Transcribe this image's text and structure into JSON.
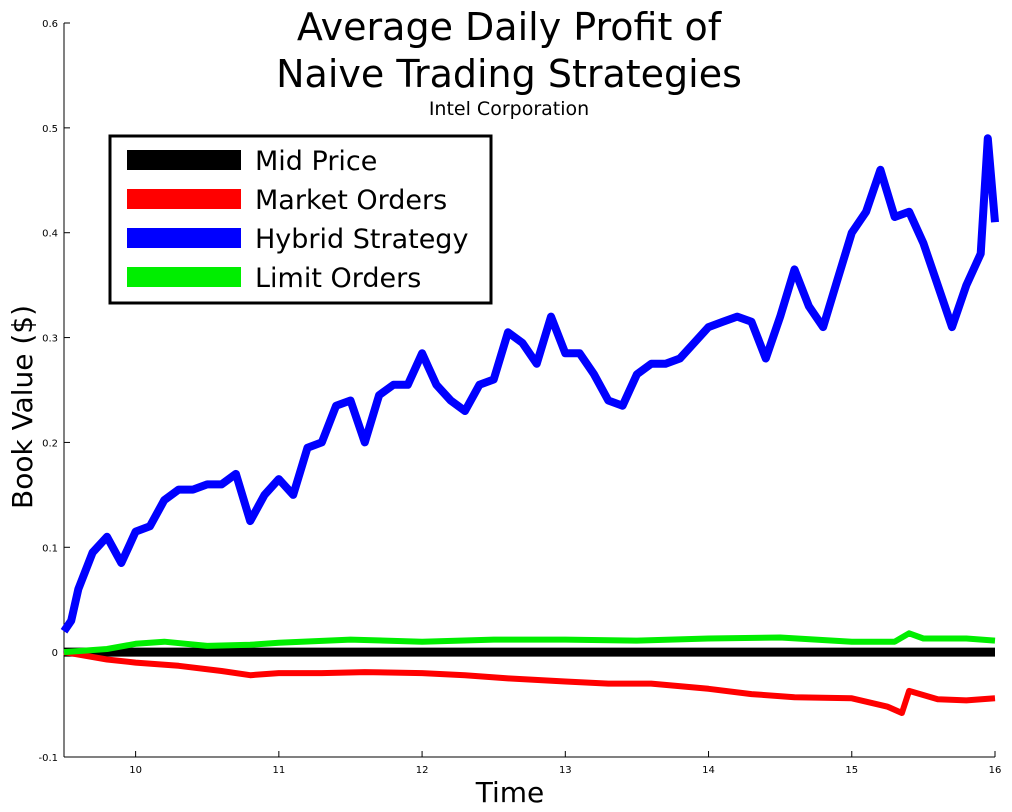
{
  "chart_data": {
    "type": "line",
    "title_line1": "Average Daily Profit of",
    "title_line2": "Naive Trading Strategies",
    "subtitle": "Intel Corporation",
    "xlabel": "Time",
    "ylabel": "Book Value ($)",
    "xlim": [
      9.5,
      16
    ],
    "ylim": [
      -0.1,
      0.6
    ],
    "x_ticks": [
      "10",
      "11",
      "12",
      "13",
      "14",
      "15",
      "16"
    ],
    "y_ticks": [
      "-0.1",
      "0",
      "0.1",
      "0.2",
      "0.3",
      "0.4",
      "0.5",
      "0.6"
    ],
    "legend_position": "top-left",
    "grid": false,
    "series": [
      {
        "name": "Mid Price",
        "color": "#000000",
        "x": [
          9.5,
          16.0
        ],
        "y": [
          0.0,
          0.0
        ]
      },
      {
        "name": "Market Orders",
        "color": "#ff0000",
        "x": [
          9.5,
          9.8,
          10.0,
          10.3,
          10.6,
          10.8,
          11.0,
          11.3,
          11.6,
          12.0,
          12.3,
          12.6,
          13.0,
          13.3,
          13.6,
          14.0,
          14.3,
          14.6,
          15.0,
          15.25,
          15.35,
          15.4,
          15.6,
          15.8,
          16.0
        ],
        "y": [
          0.0,
          -0.007,
          -0.01,
          -0.013,
          -0.018,
          -0.022,
          -0.02,
          -0.02,
          -0.019,
          -0.02,
          -0.022,
          -0.025,
          -0.028,
          -0.03,
          -0.03,
          -0.035,
          -0.04,
          -0.043,
          -0.044,
          -0.052,
          -0.058,
          -0.037,
          -0.045,
          -0.046,
          -0.044
        ]
      },
      {
        "name": "Hybrid Strategy",
        "color": "#0000ff",
        "x": [
          9.5,
          9.55,
          9.6,
          9.7,
          9.8,
          9.9,
          9.95,
          10.0,
          10.1,
          10.2,
          10.3,
          10.4,
          10.5,
          10.6,
          10.7,
          10.8,
          10.9,
          11.0,
          11.1,
          11.2,
          11.3,
          11.4,
          11.5,
          11.6,
          11.7,
          11.8,
          11.9,
          12.0,
          12.05,
          12.1,
          12.2,
          12.3,
          12.4,
          12.5,
          12.6,
          12.7,
          12.8,
          12.9,
          13.0,
          13.1,
          13.2,
          13.3,
          13.4,
          13.5,
          13.6,
          13.7,
          13.8,
          13.9,
          14.0,
          14.1,
          14.2,
          14.3,
          14.4,
          14.5,
          14.6,
          14.7,
          14.8,
          14.9,
          15.0,
          15.1,
          15.2,
          15.3,
          15.4,
          15.5,
          15.6,
          15.7,
          15.8,
          15.9,
          15.95,
          16.0
        ],
        "y": [
          0.02,
          0.03,
          0.06,
          0.095,
          0.11,
          0.085,
          0.1,
          0.115,
          0.12,
          0.145,
          0.155,
          0.155,
          0.16,
          0.16,
          0.17,
          0.125,
          0.15,
          0.165,
          0.15,
          0.195,
          0.2,
          0.235,
          0.24,
          0.2,
          0.245,
          0.255,
          0.255,
          0.285,
          0.27,
          0.255,
          0.24,
          0.23,
          0.255,
          0.26,
          0.305,
          0.295,
          0.275,
          0.32,
          0.285,
          0.285,
          0.265,
          0.24,
          0.235,
          0.265,
          0.275,
          0.275,
          0.28,
          0.295,
          0.31,
          0.315,
          0.32,
          0.315,
          0.28,
          0.32,
          0.365,
          0.33,
          0.31,
          0.355,
          0.4,
          0.42,
          0.46,
          0.415,
          0.42,
          0.39,
          0.35,
          0.31,
          0.35,
          0.38,
          0.49,
          0.41
        ]
      },
      {
        "name": "Limit Orders",
        "color": "#00ee00",
        "x": [
          9.5,
          9.8,
          10.0,
          10.2,
          10.5,
          10.8,
          11.0,
          11.5,
          12.0,
          12.5,
          13.0,
          13.5,
          14.0,
          14.5,
          15.0,
          15.3,
          15.4,
          15.5,
          15.8,
          16.0
        ],
        "y": [
          0.0,
          0.003,
          0.008,
          0.01,
          0.006,
          0.007,
          0.009,
          0.012,
          0.01,
          0.012,
          0.012,
          0.011,
          0.013,
          0.014,
          0.01,
          0.01,
          0.018,
          0.013,
          0.013,
          0.011
        ]
      }
    ]
  }
}
